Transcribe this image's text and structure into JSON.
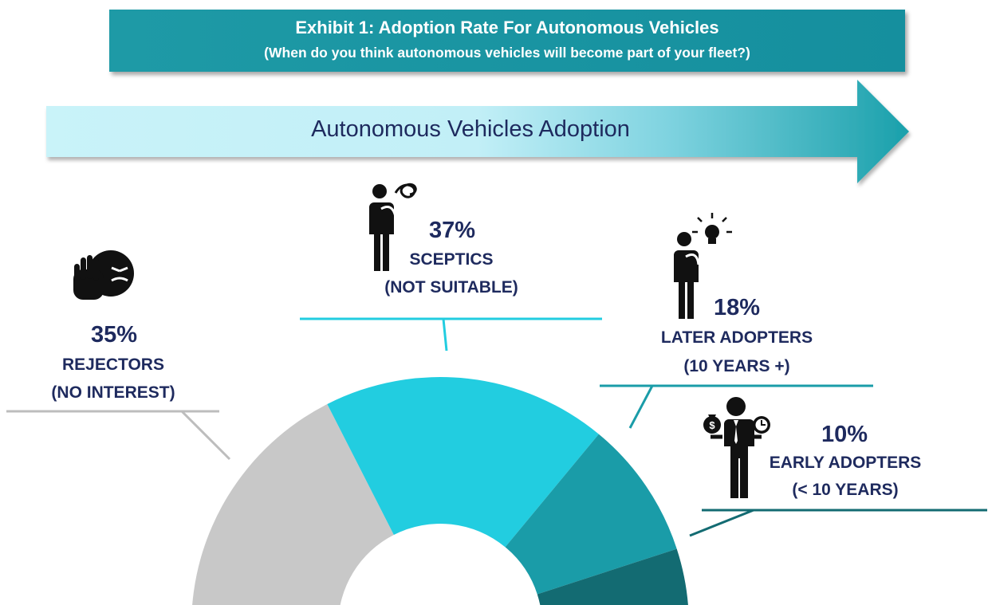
{
  "header": {
    "title": "Exhibit 1: Adoption Rate For Autonomous Vehicles",
    "subtitle": "(When do you think autonomous vehicles will become part of your fleet?)"
  },
  "arrow": {
    "label": "Autonomous Vehicles Adoption"
  },
  "colors": {
    "banner": "#1697a4",
    "rejectors": "#c8c8c8",
    "sceptics": "#22cde0",
    "later_adopters": "#1a9ca8",
    "early_adopters": "#136b72",
    "text": "#1e2a5e"
  },
  "segments": [
    {
      "key": "rejectors",
      "percent_label": "35%",
      "label_line1": "REJECTORS",
      "label_line2": "(NO INTEREST)",
      "icon": "hand-stop-angry-face-icon"
    },
    {
      "key": "sceptics",
      "percent_label": "37%",
      "label_line1": "SCEPTICS",
      "label_line2": "(NOT SUITABLE)",
      "icon": "confused-person-icon"
    },
    {
      "key": "later_adopters",
      "percent_label": "18%",
      "label_line1": "LATER ADOPTERS",
      "label_line2": "(10 YEARS +)",
      "icon": "thinking-person-lightbulb-icon"
    },
    {
      "key": "early_adopters",
      "percent_label": "10%",
      "label_line1": "EARLY ADOPTERS",
      "label_line2": "(< 10 YEARS)",
      "icon": "businessman-money-clock-icon"
    }
  ],
  "chart_data": {
    "type": "pie",
    "subtype": "half-donut",
    "categories": [
      "REJECTORS (NO INTEREST)",
      "SCEPTICS (NOT SUITABLE)",
      "LATER ADOPTERS (10 YEARS +)",
      "EARLY ADOPTERS (< 10 YEARS)"
    ],
    "values": [
      35,
      37,
      18,
      10
    ],
    "colors": [
      "#c8c8c8",
      "#22cde0",
      "#1a9ca8",
      "#136b72"
    ],
    "title": "Exhibit 1: Adoption Rate For Autonomous Vehicles",
    "subtitle": "(When do you think autonomous vehicles will become part of your fleet?)",
    "unit": "%"
  }
}
